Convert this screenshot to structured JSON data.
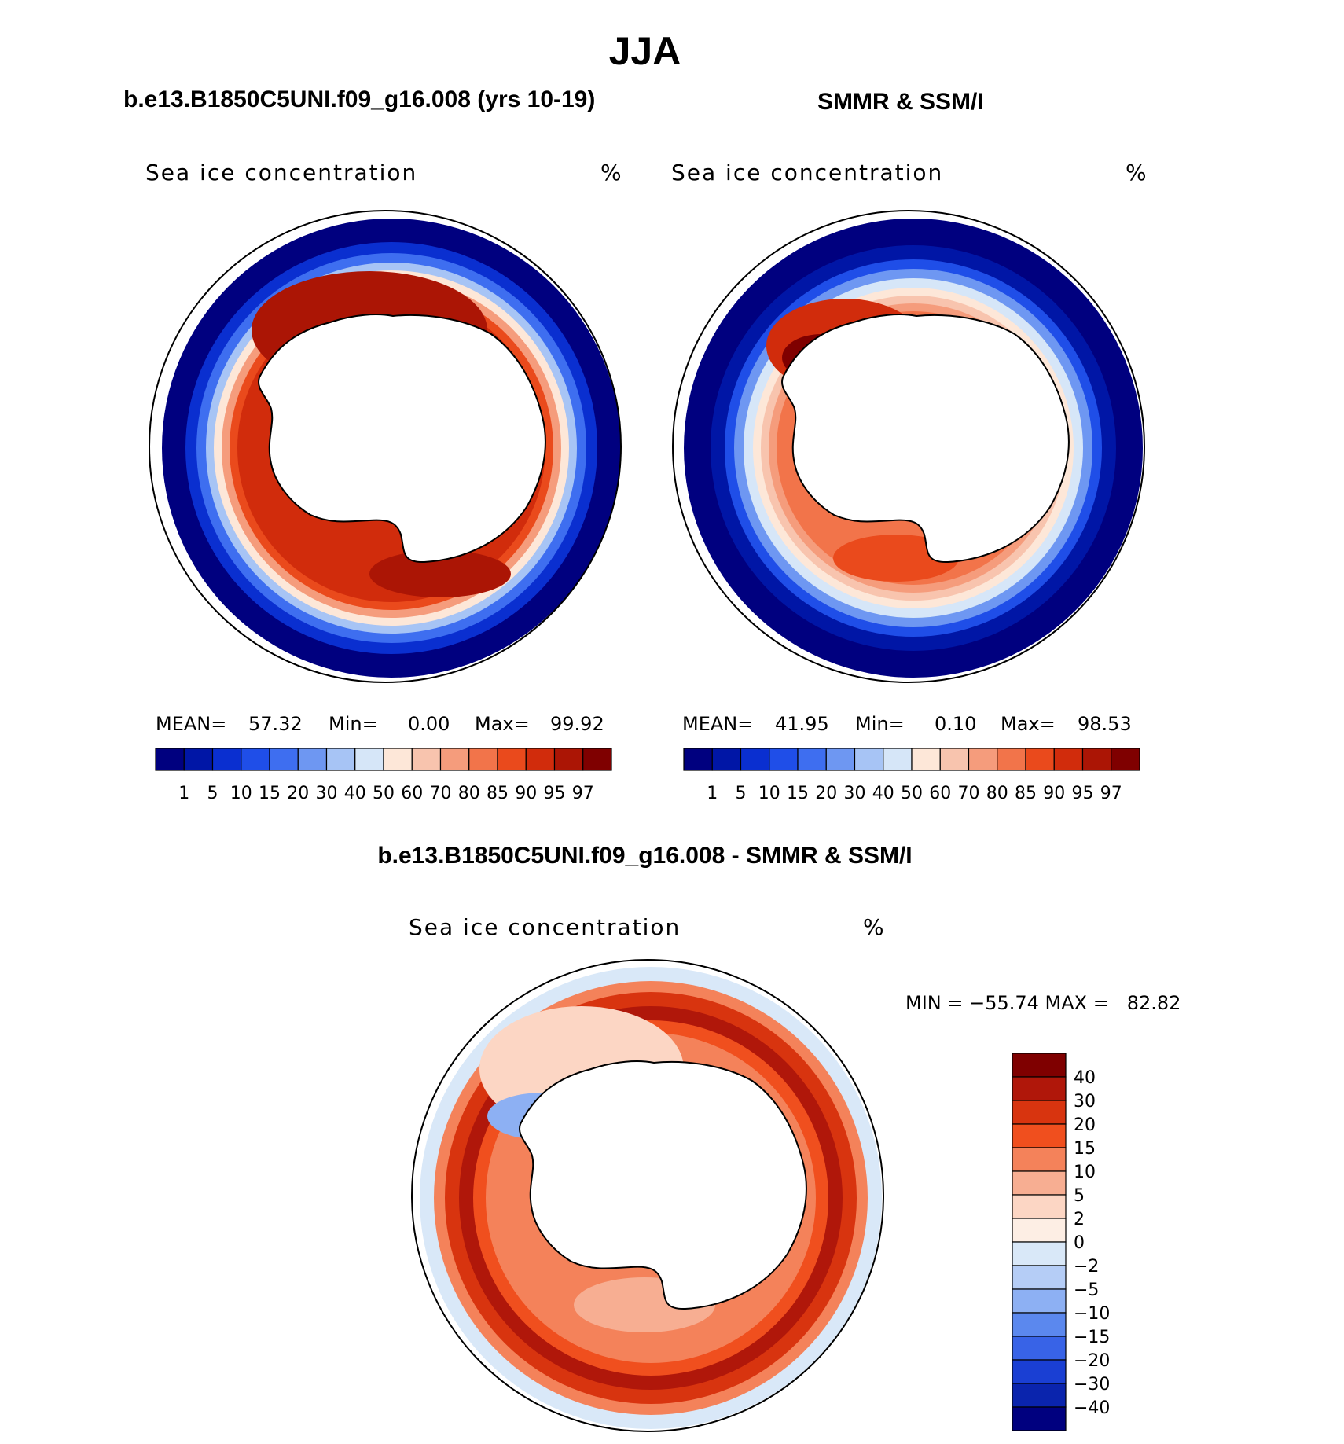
{
  "title": "JJA",
  "panels": [
    {
      "case_title": "b.e13.B1850C5UNI.f09_g16.008 (yrs 10-19)",
      "var_label": "Sea ice concentration",
      "units": "%",
      "stats": {
        "mean_label": "MEAN=",
        "mean": "57.32",
        "min_label": "Min=",
        "min": "0.00",
        "max_label": "Max=",
        "max": "99.92"
      }
    },
    {
      "case_title": "SMMR & SSM/I",
      "var_label": "Sea ice concentration",
      "units": "%",
      "stats": {
        "mean_label": "MEAN=",
        "mean": "41.95",
        "min_label": "Min=",
        "min": "0.10",
        "max_label": "Max=",
        "max": "98.53"
      }
    }
  ],
  "abs_colorbar": {
    "ticks": [
      "1",
      "5",
      "10",
      "15",
      "20",
      "30",
      "40",
      "50",
      "60",
      "70",
      "80",
      "85",
      "90",
      "95",
      "97"
    ],
    "colors": [
      "#00007f",
      "#0016a6",
      "#0a2fd0",
      "#1f4ee8",
      "#3e6ef0",
      "#6e97f2",
      "#a7c4f5",
      "#d6e6f8",
      "#fde7d8",
      "#f8c4ae",
      "#f59c7c",
      "#f2744a",
      "#ea4a1c",
      "#d12c0c",
      "#ab1505",
      "#7f0000"
    ]
  },
  "diff_panel": {
    "title": "b.e13.B1850C5UNI.f09_g16.008 - SMMR & SSM/I",
    "var_label": "Sea ice concentration",
    "units": "%",
    "minmax": "MIN = −55.74 MAX =   82.82"
  },
  "diff_colorbar": {
    "ticks": [
      "40",
      "30",
      "20",
      "15",
      "10",
      "5",
      "2",
      "0",
      "−2",
      "−5",
      "−10",
      "−15",
      "−20",
      "−30",
      "−40"
    ],
    "colors": [
      "#7f0000",
      "#b0170a",
      "#d8340f",
      "#f04f1e",
      "#f4825a",
      "#f7ae92",
      "#fcd6c4",
      "#fdeee4",
      "#d9e8f8",
      "#b5cdf6",
      "#8db0f3",
      "#5b88ee",
      "#3863e7",
      "#1a3fd3",
      "#0a24ad",
      "#00007f"
    ]
  }
}
